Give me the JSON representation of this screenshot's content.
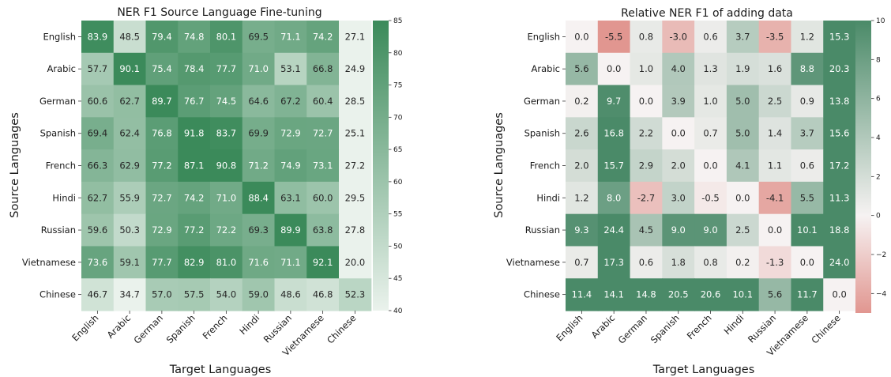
{
  "chart_data": [
    {
      "type": "heatmap",
      "title": "NER F1 Source Language Fine-tuning",
      "xlabel": "Target Languages",
      "ylabel": "Source Languages",
      "x_categories": [
        "English",
        "Arabic",
        "German",
        "Spanish",
        "French",
        "Hindi",
        "Russian",
        "Vietnamese",
        "Chinese"
      ],
      "y_categories": [
        "English",
        "Arabic",
        "German",
        "Spanish",
        "French",
        "Hindi",
        "Russian",
        "Vietnamese",
        "Chinese"
      ],
      "values": [
        [
          83.9,
          48.5,
          79.4,
          74.8,
          80.1,
          69.5,
          71.1,
          74.2,
          27.1
        ],
        [
          57.7,
          90.1,
          75.4,
          78.4,
          77.7,
          71.0,
          53.1,
          66.8,
          24.9
        ],
        [
          60.6,
          62.7,
          89.7,
          76.7,
          74.5,
          64.6,
          67.2,
          60.4,
          28.5
        ],
        [
          69.4,
          62.4,
          76.8,
          91.8,
          83.7,
          69.9,
          72.9,
          72.7,
          25.1
        ],
        [
          66.3,
          62.9,
          77.2,
          87.1,
          90.8,
          71.2,
          74.9,
          73.1,
          27.2
        ],
        [
          62.7,
          55.9,
          72.7,
          74.2,
          71.0,
          88.4,
          63.1,
          60.0,
          29.5
        ],
        [
          59.6,
          50.3,
          72.9,
          77.2,
          72.2,
          69.3,
          89.9,
          63.8,
          27.8
        ],
        [
          73.6,
          59.1,
          77.7,
          82.9,
          81.0,
          71.6,
          71.1,
          92.1,
          20.0
        ],
        [
          46.7,
          34.7,
          57.0,
          57.5,
          54.0,
          59.0,
          48.6,
          46.8,
          52.3
        ]
      ],
      "vmin": 40,
      "vmax": 85,
      "colorbar_ticks": [
        40,
        45,
        50,
        55,
        60,
        65,
        70,
        75,
        80,
        85
      ],
      "colormap": {
        "low": "#eaf2ec",
        "high": "#3b8a5a"
      }
    },
    {
      "type": "heatmap",
      "title": "Relative NER F1 of adding data",
      "xlabel": "Target Languages",
      "ylabel": "Source Languages",
      "x_categories": [
        "English",
        "Arabic",
        "German",
        "Spanish",
        "French",
        "Hindi",
        "Russian",
        "Vietnamese",
        "Chinese"
      ],
      "y_categories": [
        "English",
        "Arabic",
        "German",
        "Spanish",
        "French",
        "Hindi",
        "Russian",
        "Vietnamese",
        "Chinese"
      ],
      "values": [
        [
          0.0,
          -5.5,
          0.8,
          -3.0,
          0.6,
          3.7,
          -3.5,
          1.2,
          15.3
        ],
        [
          5.6,
          0.0,
          1.0,
          4.0,
          1.3,
          1.9,
          1.6,
          8.8,
          20.3
        ],
        [
          0.2,
          9.7,
          0.0,
          3.9,
          1.0,
          5.0,
          2.5,
          0.9,
          13.8
        ],
        [
          2.6,
          16.8,
          2.2,
          0.0,
          0.7,
          5.0,
          1.4,
          3.7,
          15.6
        ],
        [
          2.0,
          15.7,
          2.9,
          2.0,
          0.0,
          4.1,
          1.1,
          0.6,
          17.2
        ],
        [
          1.2,
          8.0,
          -2.7,
          3.0,
          -0.5,
          0.0,
          -4.1,
          5.5,
          11.3
        ],
        [
          9.3,
          24.4,
          4.5,
          9.0,
          9.0,
          2.5,
          0.0,
          10.1,
          18.8
        ],
        [
          0.7,
          17.3,
          0.6,
          1.8,
          0.8,
          0.2,
          -1.3,
          0.0,
          24.0
        ],
        [
          11.4,
          14.1,
          14.8,
          20.5,
          20.6,
          10.1,
          5.6,
          11.7,
          0.0
        ]
      ],
      "vmin": -5,
      "vmax": 10,
      "colorbar_ticks": [
        -4,
        -2,
        0,
        2,
        4,
        6,
        8,
        10
      ],
      "colorbar_tick_labels": [
        "−4",
        "−2",
        "0",
        "2",
        "4",
        "6",
        "8",
        "10"
      ],
      "colormap": {
        "low": "#e19690",
        "mid": "#f6f2f2",
        "high": "#4a8a68"
      }
    }
  ]
}
